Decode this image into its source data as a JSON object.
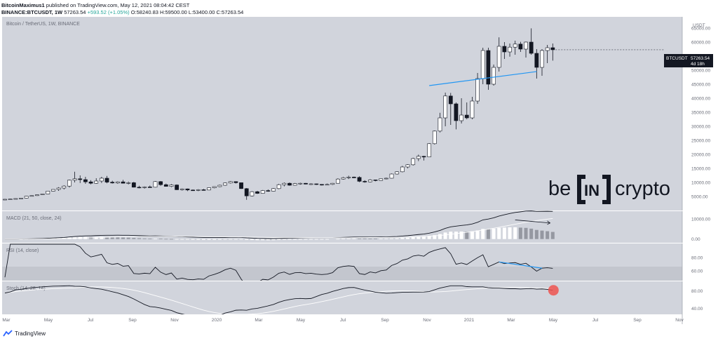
{
  "header": {
    "author": "BitcoinMaximus1",
    "published": "published on TradingView.com, May 12, 2021 08:04:42 CEST",
    "symbol": "BINANCE:BTCUSDT, 1W",
    "last": "57263.54",
    "change": "+593.52 (+1.05%)",
    "open": "O:58240.83",
    "high": "H:59500.00",
    "low": "L:53400.00",
    "close": "C:57263.54"
  },
  "colors": {
    "panel_bg": "#d1d4dc",
    "band_bg": "#c3c6ce",
    "candle_up": "#ffffff",
    "candle_down": "#131722",
    "trendline": "#2196f3",
    "stoch_marker": "#ef5350",
    "histogram": "#ffffff",
    "histogram_fading": "#9598a1"
  },
  "footer": {
    "brand": "TradingView"
  },
  "watermark": {
    "left": "be",
    "middle": "IN",
    "right": "crypto"
  },
  "chart_data": {
    "type": "candlestick",
    "title": "Bitcoin / TetherUS, 1W, BINANCE",
    "price_axis": {
      "unit": "USDT",
      "ticks": [
        5000,
        10000,
        15000,
        20000,
        25000,
        30000,
        35000,
        40000,
        45000,
        50000,
        55000,
        60000,
        65000
      ],
      "tick_labels": [
        "5000.00",
        "10000.00",
        "15000.00",
        "20000.00",
        "25000.00",
        "30000.00",
        "35000.00",
        "40000.00",
        "45000.00",
        "50000.00",
        "55000.00",
        "60000.00",
        "65000.00"
      ],
      "unit_label": "USDT",
      "range": [
        0,
        69000
      ]
    },
    "x_axis": {
      "labels": [
        "Mar",
        "May",
        "Jul",
        "Sep",
        "Nov",
        "2020",
        "Mar",
        "May",
        "Jul",
        "Sep",
        "Nov",
        "2021",
        "Mar",
        "May",
        "Jul",
        "Sep",
        "Nov"
      ]
    },
    "price_label": {
      "symbol": "BTCUSDT",
      "value": "57263.54",
      "countdown": "4d 18h"
    },
    "candles": [
      {
        "o": 3800,
        "h": 4100,
        "l": 3700,
        "c": 4000
      },
      {
        "o": 4000,
        "h": 4200,
        "l": 3900,
        "c": 4100
      },
      {
        "o": 4100,
        "h": 4300,
        "l": 4000,
        "c": 4250
      },
      {
        "o": 4250,
        "h": 4500,
        "l": 4150,
        "c": 4400
      },
      {
        "o": 4400,
        "h": 5200,
        "l": 4300,
        "c": 5100
      },
      {
        "o": 5100,
        "h": 5400,
        "l": 5000,
        "c": 5300
      },
      {
        "o": 5300,
        "h": 5700,
        "l": 5200,
        "c": 5600
      },
      {
        "o": 5600,
        "h": 6000,
        "l": 5500,
        "c": 5900
      },
      {
        "o": 5900,
        "h": 7000,
        "l": 5800,
        "c": 6900
      },
      {
        "o": 6900,
        "h": 7600,
        "l": 6800,
        "c": 7500
      },
      {
        "o": 7500,
        "h": 8300,
        "l": 7000,
        "c": 8000
      },
      {
        "o": 8000,
        "h": 9000,
        "l": 7500,
        "c": 8700
      },
      {
        "o": 8700,
        "h": 11000,
        "l": 8200,
        "c": 10800
      },
      {
        "o": 10800,
        "h": 13800,
        "l": 10000,
        "c": 11300
      },
      {
        "o": 11300,
        "h": 12500,
        "l": 9800,
        "c": 11000
      },
      {
        "o": 11000,
        "h": 12000,
        "l": 9500,
        "c": 10200
      },
      {
        "o": 10200,
        "h": 10800,
        "l": 9300,
        "c": 9700
      },
      {
        "o": 9700,
        "h": 11500,
        "l": 9500,
        "c": 10500
      },
      {
        "o": 10500,
        "h": 12000,
        "l": 9800,
        "c": 11500
      },
      {
        "o": 11500,
        "h": 12300,
        "l": 9700,
        "c": 10100
      },
      {
        "o": 10100,
        "h": 10600,
        "l": 9600,
        "c": 9800
      },
      {
        "o": 9800,
        "h": 10400,
        "l": 9500,
        "c": 10200
      },
      {
        "o": 10200,
        "h": 10900,
        "l": 9700,
        "c": 9700
      },
      {
        "o": 9700,
        "h": 10300,
        "l": 9300,
        "c": 9900
      },
      {
        "o": 9900,
        "h": 10200,
        "l": 8200,
        "c": 8300
      },
      {
        "o": 8300,
        "h": 8800,
        "l": 7900,
        "c": 8200
      },
      {
        "o": 8200,
        "h": 8600,
        "l": 7800,
        "c": 8400
      },
      {
        "o": 8400,
        "h": 8900,
        "l": 8100,
        "c": 8300
      },
      {
        "o": 8300,
        "h": 10500,
        "l": 8200,
        "c": 10300
      },
      {
        "o": 10300,
        "h": 10500,
        "l": 8800,
        "c": 9200
      },
      {
        "o": 9200,
        "h": 9600,
        "l": 8500,
        "c": 8600
      },
      {
        "o": 8600,
        "h": 9400,
        "l": 8300,
        "c": 9100
      },
      {
        "o": 9100,
        "h": 9300,
        "l": 7300,
        "c": 7400
      },
      {
        "o": 7400,
        "h": 7900,
        "l": 7100,
        "c": 7700
      },
      {
        "o": 7700,
        "h": 7800,
        "l": 6900,
        "c": 7300
      },
      {
        "o": 7300,
        "h": 7500,
        "l": 7000,
        "c": 7200
      },
      {
        "o": 7200,
        "h": 7600,
        "l": 6900,
        "c": 7400
      },
      {
        "o": 7400,
        "h": 7700,
        "l": 7100,
        "c": 7300
      },
      {
        "o": 7300,
        "h": 8200,
        "l": 7200,
        "c": 8100
      },
      {
        "o": 8100,
        "h": 8600,
        "l": 7900,
        "c": 8500
      },
      {
        "o": 8500,
        "h": 9200,
        "l": 8300,
        "c": 9000
      },
      {
        "o": 9000,
        "h": 10000,
        "l": 8800,
        "c": 9800
      },
      {
        "o": 9800,
        "h": 10500,
        "l": 9600,
        "c": 10300
      },
      {
        "o": 10300,
        "h": 10400,
        "l": 9600,
        "c": 9900
      },
      {
        "o": 9900,
        "h": 9700,
        "l": 7700,
        "c": 7800
      },
      {
        "o": 7800,
        "h": 8000,
        "l": 3800,
        "c": 5200
      },
      {
        "o": 5200,
        "h": 6900,
        "l": 5000,
        "c": 6700
      },
      {
        "o": 6700,
        "h": 7000,
        "l": 5900,
        "c": 6100
      },
      {
        "o": 6100,
        "h": 7300,
        "l": 6000,
        "c": 7100
      },
      {
        "o": 7100,
        "h": 7500,
        "l": 6700,
        "c": 6900
      },
      {
        "o": 6900,
        "h": 8000,
        "l": 6800,
        "c": 7800
      },
      {
        "o": 7800,
        "h": 9500,
        "l": 7600,
        "c": 9200
      },
      {
        "o": 9200,
        "h": 10000,
        "l": 8600,
        "c": 9700
      },
      {
        "o": 9700,
        "h": 10000,
        "l": 8800,
        "c": 9000
      },
      {
        "o": 9000,
        "h": 9800,
        "l": 8900,
        "c": 9600
      },
      {
        "o": 9600,
        "h": 9900,
        "l": 9200,
        "c": 9700
      },
      {
        "o": 9700,
        "h": 9800,
        "l": 9300,
        "c": 9400
      },
      {
        "o": 9400,
        "h": 9700,
        "l": 9100,
        "c": 9500
      },
      {
        "o": 9500,
        "h": 9600,
        "l": 9100,
        "c": 9300
      },
      {
        "o": 9300,
        "h": 9400,
        "l": 8900,
        "c": 9200
      },
      {
        "o": 9200,
        "h": 9600,
        "l": 9000,
        "c": 9300
      },
      {
        "o": 9300,
        "h": 9800,
        "l": 9100,
        "c": 9700
      },
      {
        "o": 9700,
        "h": 11500,
        "l": 9600,
        "c": 11200
      },
      {
        "o": 11200,
        "h": 12000,
        "l": 11000,
        "c": 11700
      },
      {
        "o": 11700,
        "h": 12400,
        "l": 11200,
        "c": 11900
      },
      {
        "o": 11900,
        "h": 12100,
        "l": 11500,
        "c": 11800
      },
      {
        "o": 11800,
        "h": 12200,
        "l": 10100,
        "c": 10400
      },
      {
        "o": 10400,
        "h": 10800,
        "l": 9900,
        "c": 10200
      },
      {
        "o": 10200,
        "h": 11200,
        "l": 10000,
        "c": 10900
      },
      {
        "o": 10900,
        "h": 11000,
        "l": 10400,
        "c": 10700
      },
      {
        "o": 10700,
        "h": 11400,
        "l": 10600,
        "c": 11300
      },
      {
        "o": 11300,
        "h": 11700,
        "l": 11100,
        "c": 11500
      },
      {
        "o": 11500,
        "h": 13200,
        "l": 11400,
        "c": 13000
      },
      {
        "o": 13000,
        "h": 14000,
        "l": 12800,
        "c": 13800
      },
      {
        "o": 13800,
        "h": 15900,
        "l": 13600,
        "c": 15500
      },
      {
        "o": 15500,
        "h": 16500,
        "l": 15000,
        "c": 16300
      },
      {
        "o": 16300,
        "h": 18800,
        "l": 16000,
        "c": 18500
      },
      {
        "o": 18500,
        "h": 19900,
        "l": 17600,
        "c": 19300
      },
      {
        "o": 19300,
        "h": 19500,
        "l": 17800,
        "c": 19100
      },
      {
        "o": 19100,
        "h": 24000,
        "l": 19000,
        "c": 23800
      },
      {
        "o": 23800,
        "h": 28500,
        "l": 23500,
        "c": 28300
      },
      {
        "o": 28300,
        "h": 34800,
        "l": 27800,
        "c": 33000
      },
      {
        "o": 33000,
        "h": 42000,
        "l": 30000,
        "c": 40800
      },
      {
        "o": 40800,
        "h": 41900,
        "l": 30500,
        "c": 38000
      },
      {
        "o": 38000,
        "h": 38500,
        "l": 28900,
        "c": 32000
      },
      {
        "o": 32000,
        "h": 40000,
        "l": 31000,
        "c": 34000
      },
      {
        "o": 34000,
        "h": 38500,
        "l": 32500,
        "c": 33000
      },
      {
        "o": 33000,
        "h": 40500,
        "l": 32500,
        "c": 39000
      },
      {
        "o": 39000,
        "h": 49000,
        "l": 38000,
        "c": 47000
      },
      {
        "o": 47000,
        "h": 58000,
        "l": 45000,
        "c": 57000
      },
      {
        "o": 57000,
        "h": 58000,
        "l": 43000,
        "c": 45000
      },
      {
        "o": 45000,
        "h": 52000,
        "l": 44500,
        "c": 51000
      },
      {
        "o": 51000,
        "h": 61700,
        "l": 49500,
        "c": 58500
      },
      {
        "o": 58500,
        "h": 60000,
        "l": 54000,
        "c": 56500
      },
      {
        "o": 56500,
        "h": 59500,
        "l": 54800,
        "c": 58200
      },
      {
        "o": 58200,
        "h": 60500,
        "l": 55500,
        "c": 59300
      },
      {
        "o": 59300,
        "h": 60100,
        "l": 56500,
        "c": 57500
      },
      {
        "o": 57500,
        "h": 60200,
        "l": 54500,
        "c": 60000
      },
      {
        "o": 60000,
        "h": 64900,
        "l": 55500,
        "c": 56000
      },
      {
        "o": 56000,
        "h": 57500,
        "l": 47000,
        "c": 51000
      },
      {
        "o": 51000,
        "h": 57500,
        "l": 48000,
        "c": 57000
      },
      {
        "o": 57000,
        "h": 59000,
        "l": 52500,
        "c": 58000
      },
      {
        "o": 58000,
        "h": 59500,
        "l": 53400,
        "c": 57263.54
      }
    ],
    "price_trendline": {
      "from": [
        0,
        44500
      ],
      "to": [
        21,
        49500
      ]
    },
    "macd": {
      "label": "MACD (21, 50, close, 24)",
      "ticks": [
        0,
        10000
      ],
      "tick_labels": [
        "0.00",
        "10000.00"
      ],
      "range": [
        -1500,
        13500
      ]
    },
    "rsi": {
      "label": "RSI (14, close)",
      "ticks": [
        60,
        80
      ],
      "tick_labels": [
        "60.00",
        "80.00"
      ],
      "range": [
        46,
        100
      ],
      "band": [
        30,
        70
      ]
    },
    "stoch": {
      "label": "Stoch (14, 28, 14)",
      "ticks": [
        40,
        80
      ],
      "tick_labels": [
        "40.00",
        "80.00"
      ],
      "range": [
        28,
        100
      ]
    }
  }
}
